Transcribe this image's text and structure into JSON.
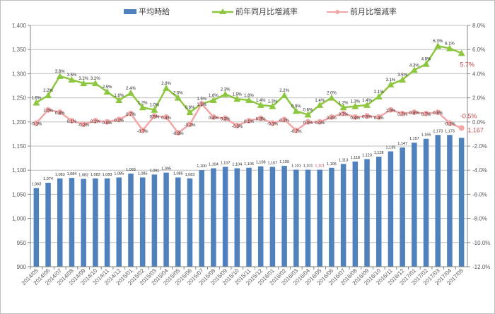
{
  "legend": {
    "bar_label": "平均時給",
    "yoy_label": "前年同月比増減率",
    "mom_label": "前月比増減率"
  },
  "colors": {
    "bar": "#4f81bd",
    "yoy_line": "#8dc63f",
    "mom_line": "#f4a6a6",
    "highlight_text": "#c0504d",
    "grid": "#bfbfbf",
    "axis_text": "#595959"
  },
  "chart_data": {
    "type": "bar+line",
    "title": "",
    "xlabel": "",
    "ylabel_left": "",
    "ylabel_right": "",
    "left_axis": {
      "min": 900,
      "max": 1400,
      "step": 50,
      "ticks": [
        "900",
        "950",
        "1,000",
        "1,050",
        "1,100",
        "1,150",
        "1,200",
        "1,250",
        "1,300",
        "1,350",
        "1,400"
      ]
    },
    "right_axis": {
      "min": -12.0,
      "max": 8.0,
      "step": 2.0,
      "ticks": [
        "-12.0%",
        "-10.0%",
        "-8.0%",
        "-6.0%",
        "-4.0%",
        "-2.0%",
        "0.0%",
        "2.0%",
        "4.0%",
        "6.0%",
        "8.0%"
      ]
    },
    "grid": true,
    "legend_position": "top",
    "categories": [
      "2014/05",
      "2014/06",
      "2014/07",
      "2014/08",
      "2014/09",
      "2014/10",
      "2014/11",
      "2014/12",
      "2015/01",
      "2015/02",
      "2015/03",
      "2015/04",
      "2015/05",
      "2015/06",
      "2015/07",
      "2015/08",
      "2015/09",
      "2015/10",
      "2015/11",
      "2015/12",
      "2016/01",
      "2016/02",
      "2016/03",
      "2016/04",
      "2016/05",
      "2016/06",
      "2016/07",
      "2016/08",
      "2016/09",
      "2016/10",
      "2016/11",
      "2016/12",
      "2017/01",
      "2017/02",
      "2017/03",
      "2017/04",
      "2017/05"
    ],
    "series": [
      {
        "name": "平均時給",
        "type": "bar",
        "axis": "left",
        "values": [
          1063,
          1074,
          1083,
          1084,
          1082,
          1083,
          1083,
          1085,
          1093,
          1085,
          1091,
          1095,
          1085,
          1083,
          1100,
          1104,
          1107,
          1104,
          1105,
          1108,
          1107,
          1109,
          1101,
          1101,
          1101,
          1105,
          1113,
          1118,
          1123,
          1128,
          1139,
          1147,
          1157,
          1165,
          1173,
          1173,
          1167
        ],
        "labels": [
          "1,063",
          "1,074",
          "1,083",
          "1,084",
          "1,082",
          "1,083",
          "1,083",
          "1,085",
          "1,093",
          "1,085",
          "1,091",
          "1,095",
          "1,085",
          "1,083",
          "1,100",
          "1,104",
          "1,107",
          "1,104",
          "1,105",
          "1,108",
          "1,107",
          "1,109",
          "1,101",
          "1,101",
          "1,101",
          "1,105",
          "1,113",
          "1,118",
          "1,123",
          "1,128",
          "1,139",
          "1,147",
          "1,157",
          "1,165",
          "1,173",
          "1,173",
          "1,167"
        ]
      },
      {
        "name": "前年同月比増減率",
        "type": "line",
        "axis": "right",
        "values": [
          1.6,
          2.2,
          3.8,
          3.5,
          3.2,
          3.2,
          2.5,
          1.8,
          2.4,
          1.2,
          1.0,
          2.8,
          2.0,
          0.8,
          1.5,
          1.8,
          2.3,
          1.9,
          1.8,
          1.4,
          1.3,
          2.2,
          0.9,
          0.6,
          1.4,
          2.0,
          1.2,
          1.3,
          1.4,
          2.1,
          3.1,
          3.5,
          4.3,
          4.8,
          6.3,
          6.1,
          5.7
        ],
        "labels": [
          "1.6%",
          "2.2%",
          "3.8%",
          "3.5%",
          "3.2%",
          "3.2%",
          "2.5%",
          "1.8%",
          "2.4%",
          "1.2%",
          "1.0%",
          "2.8%",
          "2.0%",
          "0.8%",
          "1.5%",
          "1.8%",
          "2.3%",
          "1.9%",
          "1.8%",
          "1.4%",
          "1.3%",
          "2.2%",
          "0.9%",
          "0.6%",
          "1.4%",
          "2.0%",
          "1.2%",
          "1.3%",
          "1.4%",
          "2.1%",
          "3.1%",
          "3.5%",
          "4.3%",
          "4.8%",
          "6.3%",
          "6.1%",
          "5.7%"
        ]
      },
      {
        "name": "前月比増減率",
        "type": "line",
        "axis": "right",
        "values": [
          -0.1,
          1.0,
          0.8,
          0.1,
          -0.2,
          0.1,
          0.0,
          0.2,
          0.7,
          -0.7,
          0.5,
          0.4,
          -0.9,
          -0.2,
          1.5,
          0.4,
          0.3,
          -0.3,
          0.1,
          0.3,
          -0.1,
          0.2,
          -0.7,
          0.0,
          0.0,
          0.4,
          0.7,
          0.4,
          0.5,
          0.4,
          1.0,
          0.7,
          0.8,
          0.7,
          0.8,
          -0.1,
          -0.5
        ],
        "labels": [
          "-0.1%",
          "1.0%",
          "0.8%",
          "0.1%",
          "-0.2%",
          "0.1%",
          "0.0%",
          "0.2%",
          "0.7%",
          "-0.7%",
          "0.5%",
          "0.4%",
          "-0.9%",
          "-0.2%",
          "1.5%",
          "0.4%",
          "0.3%",
          "-0.3%",
          "0.1%",
          "0.3%",
          "-0.1%",
          "0.2%",
          "-0.7%",
          "0.0%",
          "0.0%",
          "0.4%",
          "0.7%",
          "0.4%",
          "0.5%",
          "0.4%",
          "1.0%",
          "0.7%",
          "0.8%",
          "0.7%",
          "0.8%",
          "-0.1%",
          "-0.5%"
        ]
      }
    ],
    "annotations": [
      {
        "text": "5.7%",
        "series": "前年同月比増減率",
        "category": "2017/05",
        "color": "#c0504d"
      },
      {
        "text": "-0.5%",
        "series": "前月比増減率",
        "category": "2017/05",
        "color": "#c0504d"
      },
      {
        "text": "1,167",
        "series": "平均時給",
        "category": "2017/05",
        "color": "#c0504d"
      },
      {
        "text": "1,101",
        "series": "平均時給",
        "category": "2016/05",
        "color": "#c0504d"
      }
    ]
  }
}
